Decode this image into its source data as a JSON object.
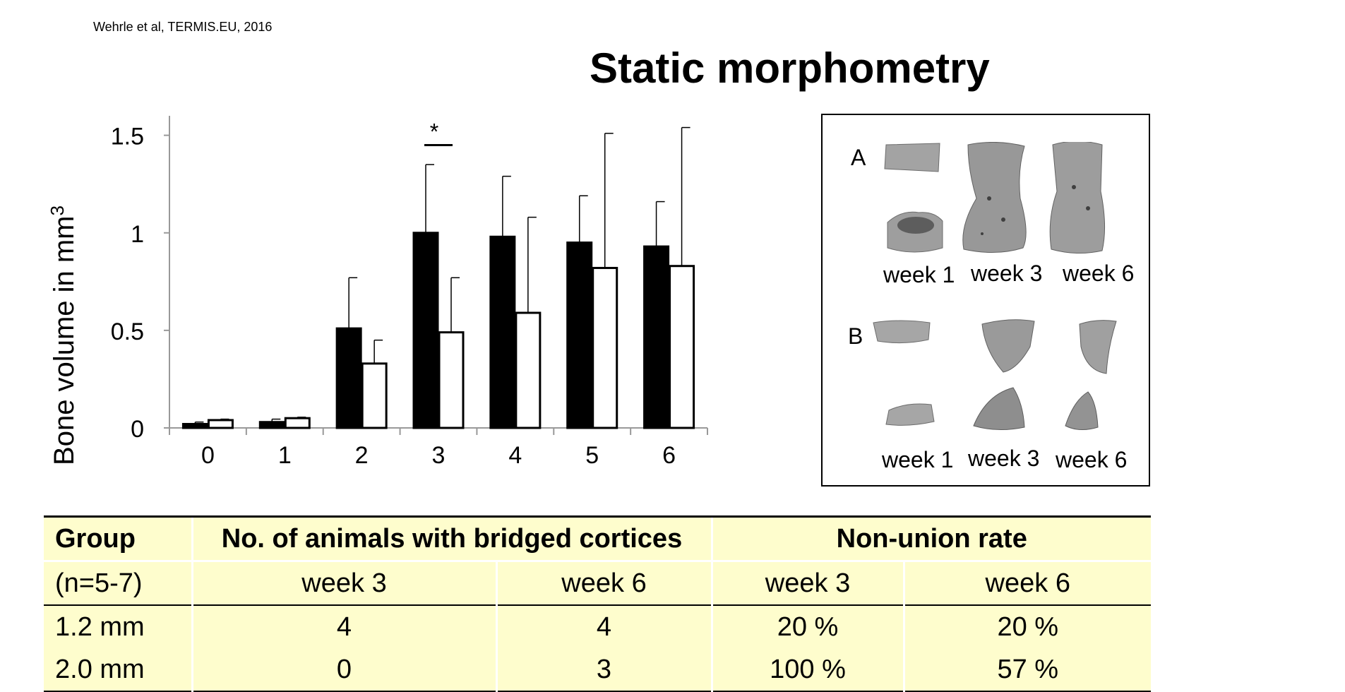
{
  "citation": "Wehrle et al, TERMIS.EU, 2016",
  "title": "Static morphometry",
  "chart_data": {
    "type": "bar",
    "ylabel": "Bone volume in mm",
    "ylabel_superscript": "3",
    "xlabel": "",
    "ylim": [
      0,
      1.6
    ],
    "yticks": [
      0,
      0.5,
      1,
      1.5
    ],
    "ytick_labels": [
      "0",
      "0.5",
      "1",
      "1.5"
    ],
    "categories": [
      "0",
      "1",
      "2",
      "3",
      "4",
      "5",
      "6"
    ],
    "series": [
      {
        "fill": "#000000",
        "values": [
          0.02,
          0.03,
          0.51,
          1.0,
          0.98,
          0.95,
          0.93
        ],
        "errors": [
          0.01,
          0.015,
          0.26,
          0.35,
          0.31,
          0.24,
          0.23
        ]
      },
      {
        "fill": "#ffffff",
        "values": [
          0.04,
          0.05,
          0.33,
          0.49,
          0.59,
          0.82,
          0.83
        ],
        "errors": [
          0.005,
          0.005,
          0.12,
          0.28,
          0.49,
          0.69,
          0.71
        ]
      }
    ],
    "significance": {
      "category": "3",
      "marker": "*"
    },
    "grid": false,
    "legend": "none"
  },
  "panel": {
    "row_a": {
      "label": "A",
      "weeks": [
        "week 1",
        "week 3",
        "week 6"
      ]
    },
    "row_b": {
      "label": "B",
      "weeks": [
        "week 1",
        "week 3",
        "week 6"
      ]
    },
    "bone_color": "#9a9a9a"
  },
  "table": {
    "header": {
      "group": "Group",
      "bridged": "No. of animals with bridged cortices",
      "nonunion": "Non-union rate"
    },
    "subheader": {
      "n": "(n=5-7)",
      "b_w3": "week 3",
      "b_w6": "week 6",
      "n_w3": "week 3",
      "n_w6": "week 6"
    },
    "rows": [
      {
        "group": "1.2 mm",
        "b_w3": "4",
        "b_w6": "4",
        "n_w3": "20 %",
        "n_w6": "20 %"
      },
      {
        "group": "2.0 mm",
        "b_w3": "0",
        "b_w6": "3",
        "n_w3": "100 %",
        "n_w6": "57 %"
      }
    ],
    "background": "#fefdcd"
  }
}
